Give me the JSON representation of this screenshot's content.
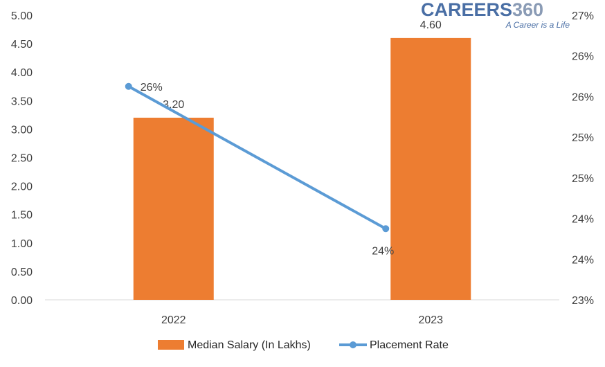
{
  "brand": {
    "name_main": "CAREERS",
    "name_num": "360",
    "tagline": "A Career is a Life",
    "main_color": "#4a6fa5",
    "num_color": "#8a9bb5"
  },
  "chart_data": {
    "type": "bar",
    "categories": [
      "2022",
      "2023"
    ],
    "series": [
      {
        "name": "Median Salary (In Lakhs)",
        "type": "bar",
        "axis": "left",
        "values": [
          3.2,
          4.6
        ],
        "labels": [
          "3.20",
          "4.60"
        ],
        "color": "#ed7d31"
      },
      {
        "name": "Placement Rate",
        "type": "line",
        "axis": "right",
        "values": [
          26.0,
          24.0
        ],
        "labels": [
          "26%",
          "24%"
        ],
        "color": "#5b9bd5"
      }
    ],
    "y_left": {
      "min": 0,
      "max": 5,
      "ticks": [
        "0.00",
        "0.50",
        "1.00",
        "1.50",
        "2.00",
        "2.50",
        "3.00",
        "3.50",
        "4.00",
        "4.50",
        "5.00"
      ]
    },
    "y_right": {
      "min": 23,
      "max": 27,
      "ticks": [
        "23%",
        "24%",
        "24%",
        "25%",
        "25%",
        "26%",
        "26%",
        "27%"
      ]
    },
    "legend": "bottom",
    "grid": false
  }
}
